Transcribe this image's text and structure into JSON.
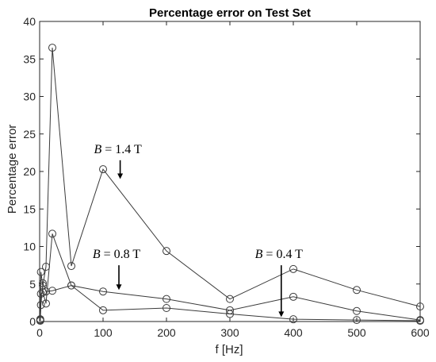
{
  "chart_data": {
    "type": "line",
    "title": "Percentage error on Test Set",
    "xlabel": "f [Hz]",
    "ylabel": "Percentage error",
    "xlim": [
      0,
      600
    ],
    "ylim": [
      0,
      40
    ],
    "xticks": [
      0,
      100,
      200,
      300,
      400,
      500,
      600
    ],
    "yticks": [
      0,
      5,
      10,
      15,
      20,
      25,
      30,
      35,
      40
    ],
    "grid": false,
    "legend": "none",
    "marker": "open-circle",
    "series": [
      {
        "x": [
          1,
          2,
          5,
          10,
          20,
          50,
          100,
          200,
          300,
          400,
          500,
          600
        ],
        "y": [
          0.3,
          6.6,
          4.8,
          7.3,
          36.5,
          7.4,
          20.3,
          9.4,
          3.0,
          7.0,
          4.2,
          2.0
        ]
      },
      {
        "x": [
          1,
          2,
          5,
          10,
          20,
          50,
          100,
          200,
          300,
          400,
          500,
          600
        ],
        "y": [
          0.2,
          3.7,
          3.9,
          2.4,
          11.7,
          4.8,
          4.0,
          3.0,
          1.5,
          3.3,
          1.4,
          0.2
        ]
      },
      {
        "x": [
          1,
          2,
          5,
          10,
          20,
          50,
          100,
          200,
          300,
          400,
          500,
          600
        ],
        "y": [
          0.1,
          2.2,
          5.1,
          4.0,
          4.1,
          4.8,
          1.5,
          1.8,
          1.0,
          0.3,
          0.2,
          0.1
        ]
      }
    ],
    "annotations": [
      {
        "var": "B",
        "text": "= 1.4 T",
        "arrow_x": 127,
        "arrow_y_from": 21.5,
        "arrow_y_to": 19.0
      },
      {
        "var": "B",
        "text": "= 0.8 T",
        "arrow_x": 125,
        "arrow_y_from": 7.5,
        "arrow_y_to": 4.2
      },
      {
        "var": "B",
        "text": "= 0.4 T",
        "arrow_x": 381,
        "arrow_y_from": 7.5,
        "arrow_y_to": 0.6
      }
    ]
  }
}
